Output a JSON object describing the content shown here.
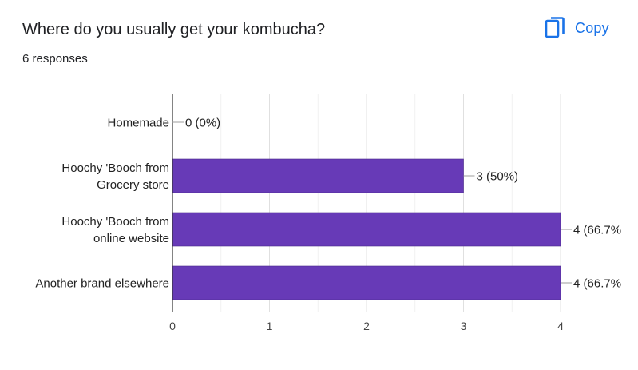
{
  "question": {
    "title": "Where do you usually get your kombucha?",
    "responses": "6 responses"
  },
  "copy_button": {
    "label": "Copy",
    "icon": "copy-icon"
  },
  "colors": {
    "bar": "#673ab7",
    "accent": "#1a73e8"
  },
  "chart_data": {
    "type": "bar",
    "orientation": "horizontal",
    "categories": [
      [
        "Homemade"
      ],
      [
        "Hoochy 'Booch from",
        "Grocery store"
      ],
      [
        "Hoochy 'Booch from",
        "online website"
      ],
      [
        "Another brand elsewhere"
      ]
    ],
    "values": [
      0,
      3,
      4,
      4
    ],
    "value_labels": [
      "0 (0%)",
      "3 (50%)",
      "4 (66.7%",
      "4 (66.7%"
    ],
    "xticks": [
      "0",
      "1",
      "2",
      "3",
      "4"
    ],
    "xlim": [
      0,
      4
    ],
    "grid": true,
    "legend": "none"
  }
}
